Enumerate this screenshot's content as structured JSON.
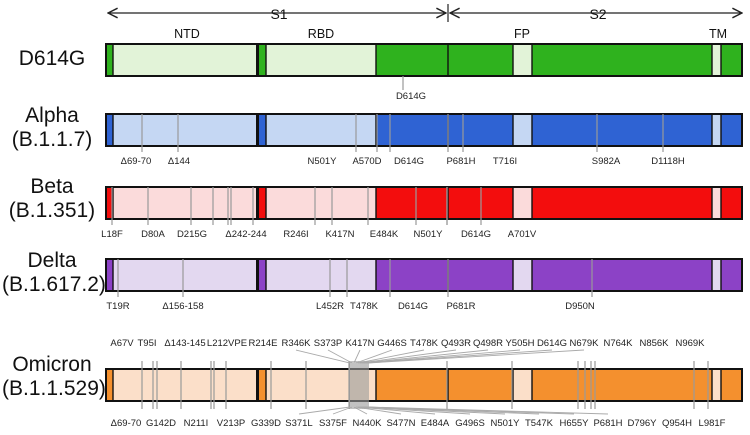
{
  "header": {
    "s1": "S1",
    "s2": "S2",
    "domains": [
      "NTD",
      "RBD",
      "FP",
      "TM"
    ]
  },
  "colors": {
    "D614G": {
      "light": "#e2f3d8",
      "dark": "#2fb21e"
    },
    "Alpha": {
      "light": "#c5d7f3",
      "dark": "#2f63d3"
    },
    "Beta": {
      "light": "#fbdbdb",
      "dark": "#f30d0d"
    },
    "Delta": {
      "light": "#e3d8f0",
      "dark": "#8c42c6"
    },
    "Omicron": {
      "light": "#fbdfc9",
      "dark": "#f4902e"
    }
  },
  "variants": [
    {
      "id": "D614G",
      "name": "D614G",
      "lineage": "",
      "mutations_above": [],
      "mutations_below": [],
      "label_mid": "D614G"
    },
    {
      "id": "Alpha",
      "name": "Alpha",
      "lineage": "(B.1.1.7)",
      "mutations_above": [],
      "mutations_below": [
        "Δ69-70",
        "Δ144",
        "N501Y",
        "A570D",
        "D614G",
        "P681H",
        "T716I",
        "S982A",
        "D1118H"
      ]
    },
    {
      "id": "Beta",
      "name": "Beta",
      "lineage": "(B.1.351)",
      "mutations_above": [],
      "mutations_below": [
        "L18F",
        "D80A",
        "D215G",
        "Δ242-244",
        "R246I",
        "K417N",
        "E484K",
        "N501Y",
        "D614G",
        "A701V"
      ]
    },
    {
      "id": "Delta",
      "name": "Delta",
      "lineage": "(B.1.617.2)",
      "mutations_above": [],
      "mutations_below": [
        "T19R",
        "Δ156-158",
        "L452R",
        "T478K",
        "D614G",
        "P681R",
        "D950N"
      ]
    },
    {
      "id": "Omicron",
      "name": "Omicron",
      "lineage": "(B.1.1.529)",
      "mutations_above": [
        "A67V",
        "T95I",
        "Δ143-145",
        "L212VPE",
        "R214E",
        "R346K",
        "S373P",
        "K417N",
        "G446S",
        "T478K",
        "Q493R",
        "Q498R",
        "Y505H",
        "D614G",
        "N679K",
        "N764K",
        "N856K",
        "N969K"
      ],
      "mutations_below": [
        "Δ69-70",
        "G142D",
        "N211I",
        "V213P",
        "G339D",
        "S371L",
        "S375F",
        "N440K",
        "S477N",
        "E484A",
        "G496S",
        "N501Y",
        "T547K",
        "H655Y",
        "P681H",
        "D796Y",
        "Q954H",
        "L981F"
      ]
    }
  ]
}
